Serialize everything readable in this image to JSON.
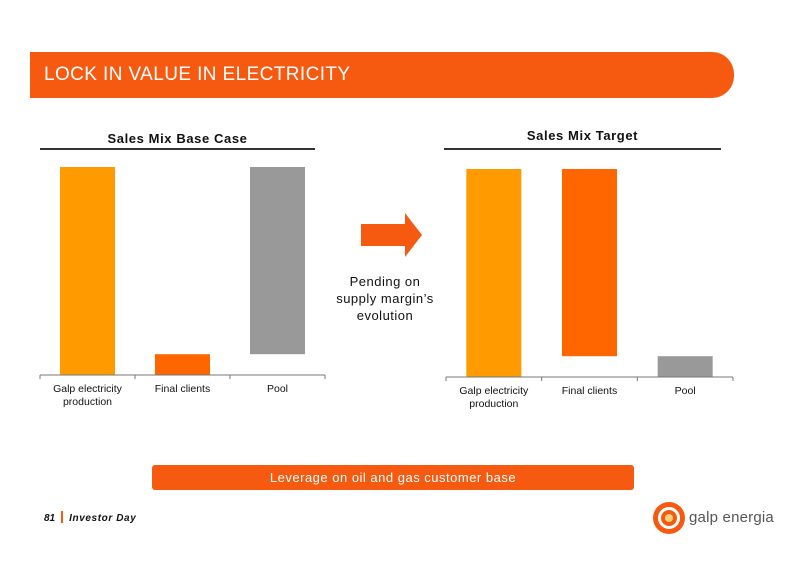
{
  "header": {
    "title": "LOCK IN VALUE IN ELECTRICITY"
  },
  "middle": {
    "pending_lines": [
      "Pending on",
      "supply margin’s",
      "evolution"
    ]
  },
  "leverage": {
    "label": "Leverage on oil and gas customer base"
  },
  "footer": {
    "page": "81",
    "event": "Investor Day"
  },
  "logo": {
    "text": "galp energia"
  },
  "colors": {
    "accent": "#f55a10",
    "bar_gold": "#ff9a00",
    "bar_orange": "#ff6600",
    "bar_grey": "#999999"
  },
  "chart_data": [
    {
      "type": "bar",
      "title": "Sales Mix Base Case",
      "categories": [
        "Galp electricity production",
        "Final clients",
        "Pool"
      ],
      "category_lines": [
        [
          "Galp electricity",
          "production"
        ],
        [
          "Final clients"
        ],
        [
          "Pool"
        ]
      ],
      "bars": [
        {
          "base": 0,
          "top": 100,
          "color": "#ff9a00"
        },
        {
          "base": 0,
          "top": 10,
          "color": "#ff6600"
        },
        {
          "base": 10,
          "top": 100,
          "color": "#999999"
        }
      ],
      "ylim": [
        0,
        100
      ]
    },
    {
      "type": "bar",
      "title": "Sales Mix Target",
      "categories": [
        "Galp electricity production",
        "Final clients",
        "Pool"
      ],
      "category_lines": [
        [
          "Galp electricity",
          "production"
        ],
        [
          "Final clients"
        ],
        [
          "Pool"
        ]
      ],
      "bars": [
        {
          "base": 0,
          "top": 100,
          "color": "#ff9a00"
        },
        {
          "base": 10,
          "top": 100,
          "color": "#ff6600"
        },
        {
          "base": 0,
          "top": 10,
          "color": "#999999"
        }
      ],
      "ylim": [
        0,
        100
      ]
    }
  ]
}
